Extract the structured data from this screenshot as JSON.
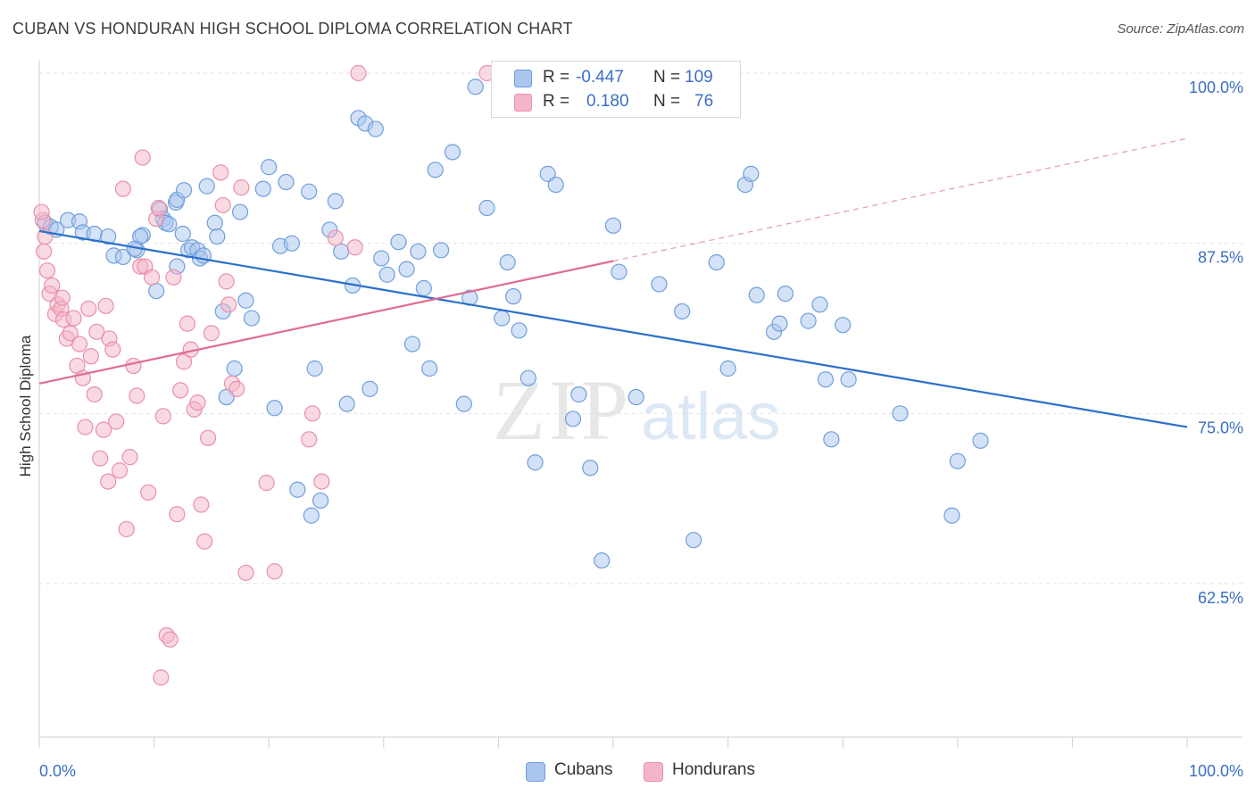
{
  "title": "CUBAN VS HONDURAN HIGH SCHOOL DIPLOMA CORRELATION CHART",
  "source": "Source: ZipAtlas.com",
  "legend_top": {
    "rows": [
      {
        "r_label": "R =",
        "r_value": "-0.447",
        "n_label": "N =",
        "n_value": "109",
        "color": "#a9c6ef"
      },
      {
        "r_label": "R =",
        "r_value": "0.180",
        "n_label": "N =",
        "n_value": "76",
        "color": "#f4b5c8"
      }
    ]
  },
  "legend_bottom": [
    {
      "label": "Cubans",
      "color": "#a9c6ef"
    },
    {
      "label": "Hondurans",
      "color": "#f4b5c8"
    }
  ],
  "watermark": {
    "zip": "ZIP",
    "atlas": "atlas"
  },
  "colors": {
    "blue_fill": "#a9c6ef",
    "blue_stroke": "#6f9fdc",
    "blue_line": "#2a6fcb",
    "pink_fill": "#f4b5c8",
    "pink_stroke": "#ea8fab",
    "pink_line": "#e06b94",
    "tick_text": "#3b6fc4",
    "grid": "#e2e2e2"
  },
  "chart_data": {
    "type": "scatter",
    "title": "CUBAN VS HONDURAN HIGH SCHOOL DIPLOMA CORRELATION CHART",
    "xlabel": "",
    "ylabel": "High School Diploma",
    "xlim": [
      0,
      100
    ],
    "ylim": [
      52.0,
      101.3
    ],
    "x_tick_labels": [
      {
        "x": 0,
        "label": "0.0%"
      },
      {
        "x": 100,
        "label": "100.0%"
      }
    ],
    "y_ticks": [
      {
        "y": 100.0,
        "label": "100.0%"
      },
      {
        "y": 87.5,
        "label": "87.5%"
      },
      {
        "y": 75.0,
        "label": "75.0%"
      },
      {
        "y": 62.5,
        "label": "62.5%"
      }
    ],
    "grid": "horizontal dashed",
    "legend_position": "top-center",
    "series": [
      {
        "name": "Cubans",
        "trend": {
          "x0": 0,
          "y0": 88.4,
          "x1": 100,
          "y1": 74.0
        },
        "points": [
          [
            0.5,
            89.0
          ],
          [
            1.0,
            88.7
          ],
          [
            1.5,
            88.5
          ],
          [
            2.5,
            89.2
          ],
          [
            3.5,
            89.1
          ],
          [
            3.8,
            88.3
          ],
          [
            4.8,
            88.2
          ],
          [
            6.0,
            88.0
          ],
          [
            6.5,
            86.6
          ],
          [
            7.3,
            86.5
          ],
          [
            8.5,
            87.0
          ],
          [
            9.0,
            88.1
          ],
          [
            8.8,
            88.0
          ],
          [
            8.3,
            87.1
          ],
          [
            10.5,
            90.0
          ],
          [
            10.8,
            89.3
          ],
          [
            11.0,
            89.0
          ],
          [
            11.3,
            88.9
          ],
          [
            10.2,
            84.0
          ],
          [
            11.9,
            90.5
          ],
          [
            12.0,
            90.7
          ],
          [
            12.6,
            91.4
          ],
          [
            12.5,
            88.2
          ],
          [
            13.0,
            87.0
          ],
          [
            12.0,
            85.8
          ],
          [
            13.3,
            87.2
          ],
          [
            13.8,
            87.0
          ],
          [
            14.0,
            86.4
          ],
          [
            14.3,
            86.6
          ],
          [
            14.6,
            91.7
          ],
          [
            15.3,
            89.0
          ],
          [
            15.5,
            88.0
          ],
          [
            16.0,
            82.5
          ],
          [
            16.3,
            76.2
          ],
          [
            17.0,
            78.3
          ],
          [
            17.5,
            89.8
          ],
          [
            18.0,
            83.3
          ],
          [
            18.5,
            82.0
          ],
          [
            19.5,
            91.5
          ],
          [
            20.0,
            93.1
          ],
          [
            20.5,
            75.4
          ],
          [
            21.0,
            87.3
          ],
          [
            21.5,
            92.0
          ],
          [
            22.0,
            87.5
          ],
          [
            22.5,
            69.4
          ],
          [
            23.5,
            91.3
          ],
          [
            24.0,
            78.3
          ],
          [
            24.5,
            68.6
          ],
          [
            25.3,
            88.5
          ],
          [
            25.8,
            90.6
          ],
          [
            26.3,
            86.9
          ],
          [
            26.8,
            75.7
          ],
          [
            27.3,
            84.4
          ],
          [
            27.8,
            96.7
          ],
          [
            28.4,
            96.3
          ],
          [
            28.8,
            76.8
          ],
          [
            29.3,
            95.9
          ],
          [
            29.8,
            86.4
          ],
          [
            30.3,
            85.2
          ],
          [
            31.3,
            87.6
          ],
          [
            32.0,
            85.6
          ],
          [
            32.5,
            80.1
          ],
          [
            33.0,
            86.9
          ],
          [
            33.5,
            84.2
          ],
          [
            34.0,
            78.3
          ],
          [
            34.5,
            92.9
          ],
          [
            35.0,
            87.0
          ],
          [
            36.0,
            94.2
          ],
          [
            37.0,
            75.7
          ],
          [
            37.5,
            83.5
          ],
          [
            38.0,
            99.0
          ],
          [
            39.0,
            90.1
          ],
          [
            40.3,
            82.0
          ],
          [
            40.8,
            86.1
          ],
          [
            41.3,
            83.6
          ],
          [
            41.8,
            81.1
          ],
          [
            42.6,
            77.6
          ],
          [
            43.2,
            71.4
          ],
          [
            44.3,
            92.6
          ],
          [
            45.0,
            91.8
          ],
          [
            46.5,
            74.6
          ],
          [
            47.0,
            76.4
          ],
          [
            48.0,
            71.0
          ],
          [
            49.0,
            64.2
          ],
          [
            50.0,
            88.8
          ],
          [
            50.5,
            85.4
          ],
          [
            52.0,
            76.2
          ],
          [
            54.0,
            84.5
          ],
          [
            56.0,
            82.5
          ],
          [
            57.0,
            65.7
          ],
          [
            59.0,
            86.1
          ],
          [
            60.0,
            78.3
          ],
          [
            61.5,
            91.8
          ],
          [
            62.0,
            92.6
          ],
          [
            62.5,
            83.7
          ],
          [
            64.0,
            81.0
          ],
          [
            64.5,
            81.6
          ],
          [
            65.0,
            83.8
          ],
          [
            67.0,
            81.8
          ],
          [
            68.0,
            83.0
          ],
          [
            68.5,
            77.5
          ],
          [
            69.0,
            73.1
          ],
          [
            70.0,
            81.5
          ],
          [
            70.5,
            77.5
          ],
          [
            75.0,
            75.0
          ],
          [
            79.5,
            67.5
          ],
          [
            80.0,
            71.5
          ],
          [
            82.0,
            73.0
          ],
          [
            23.7,
            67.5
          ]
        ]
      },
      {
        "name": "Hondurans",
        "trend": {
          "x0": 0,
          "y0": 77.2,
          "x1": 50,
          "y1": 86.2,
          "dashed_to": {
            "x": 100,
            "y": 95.2
          }
        },
        "points": [
          [
            0.3,
            89.2
          ],
          [
            0.5,
            88.0
          ],
          [
            0.7,
            85.5
          ],
          [
            0.9,
            83.8
          ],
          [
            1.1,
            84.4
          ],
          [
            1.4,
            82.3
          ],
          [
            1.6,
            83.0
          ],
          [
            1.9,
            82.7
          ],
          [
            2.1,
            81.9
          ],
          [
            2.4,
            80.5
          ],
          [
            2.7,
            80.9
          ],
          [
            3.0,
            82.0
          ],
          [
            3.3,
            78.5
          ],
          [
            3.5,
            80.1
          ],
          [
            3.8,
            77.6
          ],
          [
            4.0,
            74.0
          ],
          [
            4.3,
            82.7
          ],
          [
            4.5,
            79.2
          ],
          [
            4.8,
            76.4
          ],
          [
            5.0,
            81.0
          ],
          [
            5.3,
            71.7
          ],
          [
            5.6,
            73.8
          ],
          [
            5.8,
            82.9
          ],
          [
            6.1,
            80.5
          ],
          [
            6.4,
            79.7
          ],
          [
            6.7,
            74.4
          ],
          [
            7.0,
            70.8
          ],
          [
            7.3,
            91.5
          ],
          [
            7.6,
            66.5
          ],
          [
            7.9,
            71.8
          ],
          [
            8.2,
            78.5
          ],
          [
            8.5,
            76.3
          ],
          [
            8.8,
            85.8
          ],
          [
            9.2,
            85.8
          ],
          [
            9.5,
            69.2
          ],
          [
            9.8,
            85.0
          ],
          [
            10.2,
            89.3
          ],
          [
            10.4,
            90.1
          ],
          [
            10.6,
            55.6
          ],
          [
            10.8,
            74.8
          ],
          [
            11.1,
            58.7
          ],
          [
            11.4,
            58.4
          ],
          [
            11.7,
            85.0
          ],
          [
            12.0,
            67.6
          ],
          [
            12.3,
            76.7
          ],
          [
            12.6,
            78.8
          ],
          [
            12.9,
            81.6
          ],
          [
            13.2,
            79.7
          ],
          [
            13.5,
            75.3
          ],
          [
            13.8,
            75.8
          ],
          [
            14.1,
            68.3
          ],
          [
            14.4,
            65.6
          ],
          [
            14.7,
            73.2
          ],
          [
            15.0,
            80.9
          ],
          [
            15.8,
            92.7
          ],
          [
            16.0,
            90.3
          ],
          [
            16.3,
            84.7
          ],
          [
            16.5,
            83.0
          ],
          [
            16.8,
            77.2
          ],
          [
            17.2,
            76.8
          ],
          [
            17.6,
            91.6
          ],
          [
            18.0,
            63.3
          ],
          [
            19.8,
            69.9
          ],
          [
            20.5,
            63.4
          ],
          [
            23.5,
            73.1
          ],
          [
            23.8,
            75.0
          ],
          [
            24.6,
            70.0
          ],
          [
            25.8,
            87.9
          ],
          [
            27.5,
            87.2
          ],
          [
            27.8,
            100.0
          ],
          [
            39.0,
            100.0
          ],
          [
            9.0,
            93.8
          ],
          [
            0.2,
            89.8
          ],
          [
            0.4,
            86.9
          ],
          [
            2.0,
            83.5
          ],
          [
            6.0,
            70.0
          ]
        ]
      }
    ]
  }
}
